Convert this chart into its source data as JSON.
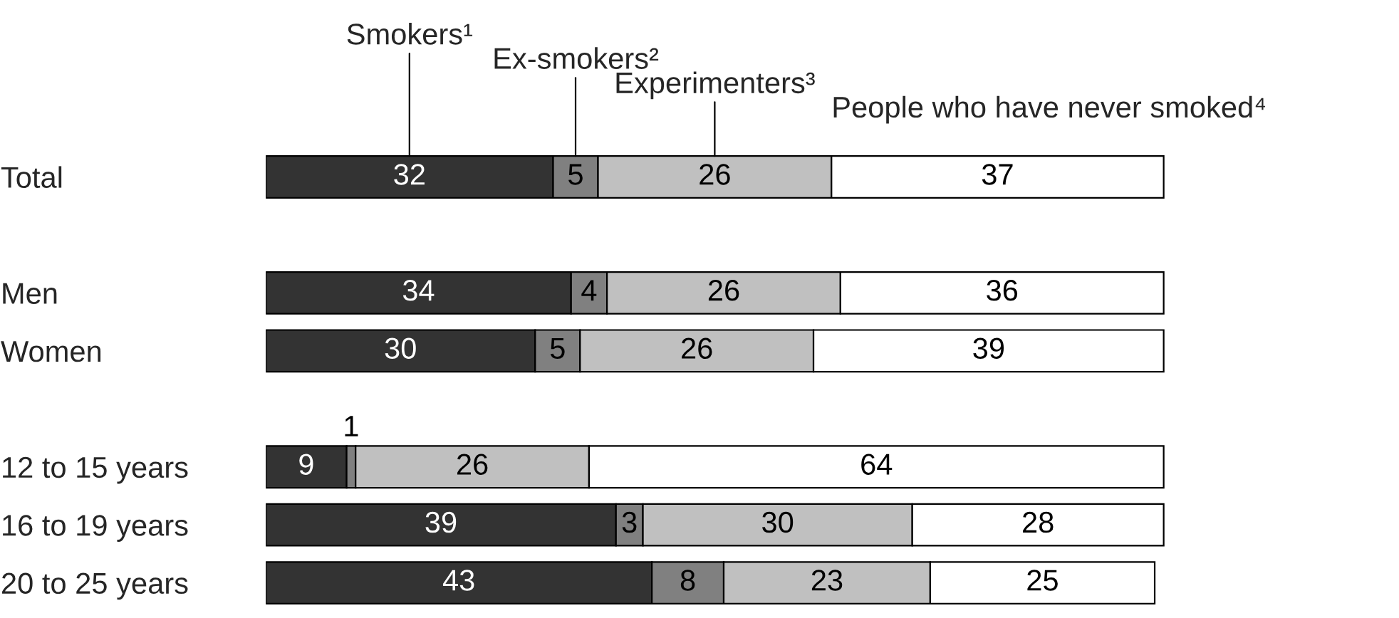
{
  "chart_data": {
    "type": "bar",
    "orientation": "horizontal",
    "stacked": true,
    "data_labels": true,
    "tick_labels": "y",
    "legend": false,
    "grid": false,
    "categories": [
      "Total",
      null,
      "Men",
      "Women",
      null,
      "12 to 15 years",
      "16 to 19 years",
      "20 to 25 years"
    ],
    "series": [
      {
        "name": "Smokers¹",
        "color": "#333333",
        "values": [
          32,
          null,
          34,
          30,
          null,
          9,
          39,
          43
        ]
      },
      {
        "name": "Ex-smokers²",
        "color": "#808080",
        "values": [
          5,
          null,
          4,
          5,
          null,
          1,
          3,
          8
        ]
      },
      {
        "name": "Experimenters³",
        "color": "#c0c0c0",
        "values": [
          26,
          null,
          26,
          26,
          null,
          26,
          30,
          23
        ]
      },
      {
        "name": "People who have never smoked⁴",
        "color": "#ffffff",
        "values": [
          37,
          null,
          36,
          39,
          null,
          64,
          28,
          25
        ]
      }
    ]
  }
}
